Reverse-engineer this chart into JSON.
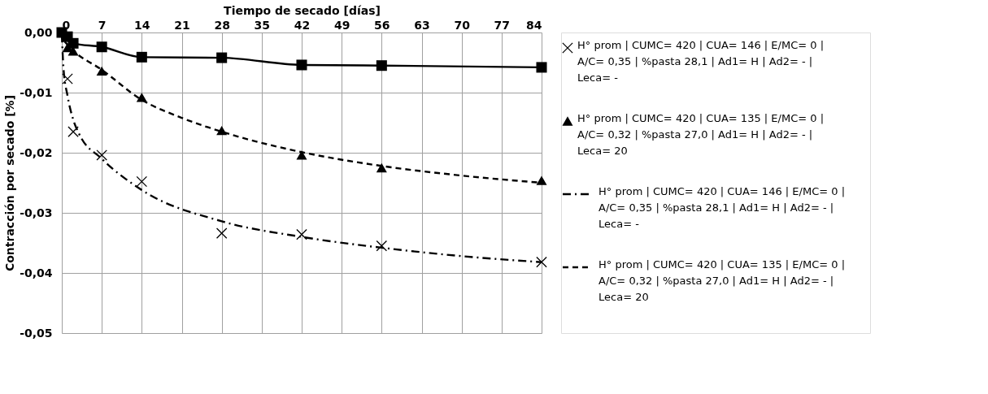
{
  "chart_data": {
    "type": "scatter",
    "xlabel": "Tiempo  de secado [días]",
    "ylabel": "Contracción por secado [%]",
    "xlim": [
      0,
      84
    ],
    "xticks": [
      0,
      7,
      14,
      21,
      28,
      35,
      42,
      49,
      56,
      63,
      70,
      77,
      84
    ],
    "ylim": [
      -0.05,
      0
    ],
    "yticks": [
      {
        "value": 0,
        "label": "0,00"
      },
      {
        "value": -0.01,
        "label": "-0,01"
      },
      {
        "value": -0.02,
        "label": "-0,02"
      },
      {
        "value": -0.03,
        "label": "-0,03"
      },
      {
        "value": -0.04,
        "label": "-0,04"
      },
      {
        "value": -0.05,
        "label": "-0,05"
      }
    ],
    "grid": true,
    "legend": "right",
    "series": [
      {
        "type": "line",
        "marker": "square",
        "line_style": "solid",
        "color": "#000000",
        "x": [
          0,
          1,
          2,
          7,
          14,
          28,
          42,
          56,
          84
        ],
        "values": [
          0,
          -0.0007,
          -0.0018,
          -0.0024,
          -0.0041,
          -0.0042,
          -0.0054,
          -0.0055,
          -0.0058
        ]
      },
      {
        "name": "H° prom | CUMC= 420 | CUA= 146 | E/MC= 0 | A/C= 0,35 | %pasta 28,1 | Ad1= H | Ad2= - | Leca= -",
        "type": "scatter",
        "marker": "cross",
        "color": "#000000",
        "x": [
          1,
          2,
          7,
          14,
          28,
          42,
          56,
          84
        ],
        "values": [
          -0.0077,
          -0.0165,
          -0.0204,
          -0.0248,
          -0.0334,
          -0.0336,
          -0.0355,
          -0.0382
        ]
      },
      {
        "name": "H° prom | CUMC= 420 | CUA= 135 | E/MC= 0 | A/C= 0,32 | %pasta 27,0 | Ad1= H | Ad2= - | Leca= 20",
        "type": "scatter",
        "marker": "triangle",
        "color": "#000000",
        "x": [
          1,
          2,
          7,
          14,
          28,
          42,
          56,
          84
        ],
        "values": [
          -0.0025,
          -0.0031,
          -0.0064,
          -0.0108,
          -0.0163,
          -0.0204,
          -0.0225,
          -0.0246
        ]
      },
      {
        "name": "H° prom | CUMC= 420 | CUA= 146 | E/MC= 0 | A/C= 0,35 | %pasta 28,1 | Ad1= H | Ad2= - | Leca= -",
        "type": "line",
        "marker": "none",
        "line_style": "dashdot",
        "color": "#000000",
        "x": [
          0,
          0.3,
          1,
          2,
          3,
          7,
          14,
          28,
          42,
          56,
          70,
          84
        ],
        "values": [
          -0.0003,
          -0.006,
          -0.0105,
          -0.0145,
          -0.0168,
          -0.021,
          -0.0262,
          -0.0314,
          -0.034,
          -0.0358,
          -0.0372,
          -0.0382
        ]
      },
      {
        "name": "H° prom | CUMC= 420 | CUA= 135 | E/MC= 0 | A/C= 0,32 | %pasta 27,0 | Ad1= H | Ad2= - | Leca= 20",
        "type": "line",
        "marker": "none",
        "line_style": "dashed",
        "color": "#000000",
        "x": [
          0.5,
          2,
          7,
          14,
          21,
          28,
          42,
          56,
          70,
          84
        ],
        "values": [
          -0.0015,
          -0.003,
          -0.0062,
          -0.0112,
          -0.0142,
          -0.0165,
          -0.0199,
          -0.0222,
          -0.0238,
          -0.025
        ]
      }
    ]
  }
}
